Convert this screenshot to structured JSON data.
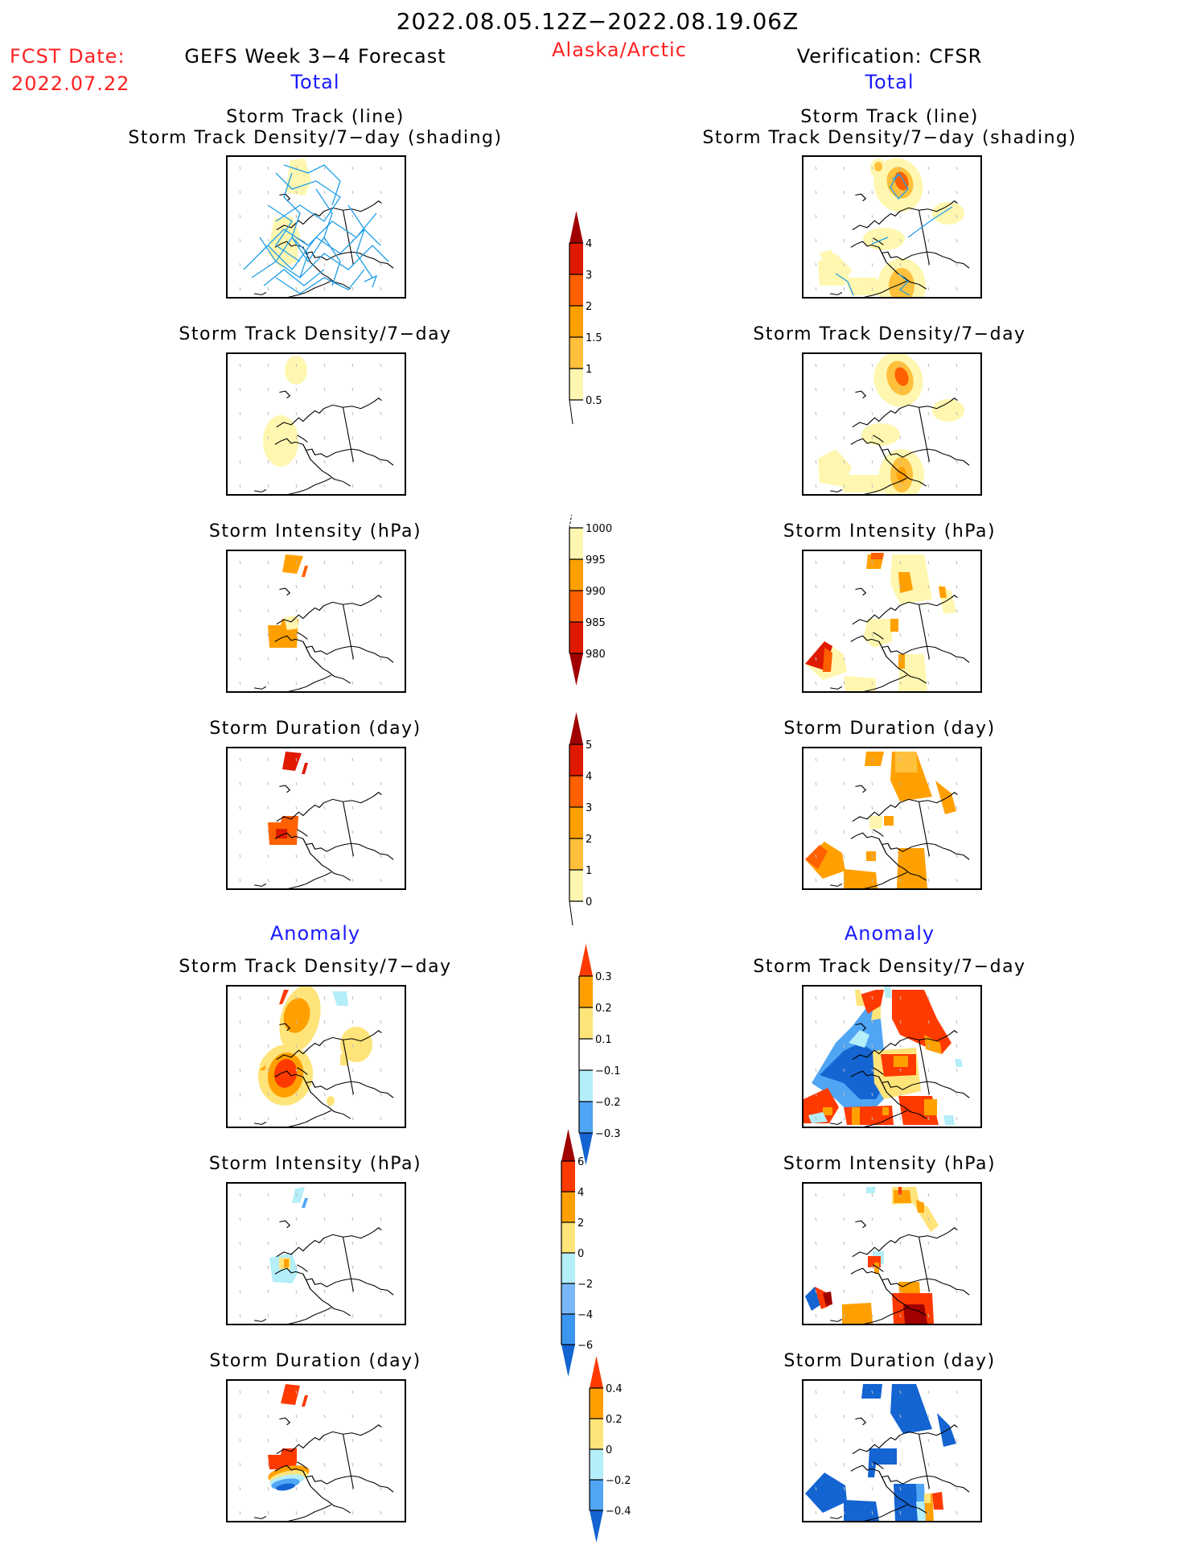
{
  "header": {
    "period": "2022.08.05.12Z−2022.08.19.06Z",
    "region": "Alaska/Arctic",
    "fcst_label": "FCST Date:",
    "fcst_date": "2022.07.22",
    "left_title": "GEFS Week 3−4 Forecast",
    "right_title": "Verification: CFSR",
    "left_subtitle": "Total",
    "right_subtitle": "Total"
  },
  "sections": {
    "total_label": "Total",
    "anomaly_label": "Anomaly"
  },
  "panels": {
    "left": [
      {
        "title_line1": "Storm Track (line)",
        "title_line2": "Storm Track Density/7−day (shading)"
      },
      {
        "title_line1": "Storm Track Density/7−day"
      },
      {
        "title_line1": "Storm Intensity (hPa)"
      },
      {
        "title_line1": "Storm Duration (day)"
      },
      {
        "title_line1": "Storm Track Density/7−day"
      },
      {
        "title_line1": "Storm Intensity (hPa)"
      },
      {
        "title_line1": "Storm Duration (day)"
      }
    ],
    "right": [
      {
        "title_line1": "Storm Track (line)",
        "title_line2": "Storm Track Density/7−day (shading)"
      },
      {
        "title_line1": "Storm Track Density/7−day"
      },
      {
        "title_line1": "Storm Intensity (hPa)"
      },
      {
        "title_line1": "Storm Duration (day)"
      },
      {
        "title_line1": "Storm Track Density/7−day"
      },
      {
        "title_line1": "Storm Intensity (hPa)"
      },
      {
        "title_line1": "Storm Duration (day)"
      }
    ]
  },
  "colors": {
    "title_red": "#ff2020",
    "subtitle_blue": "#1a1aff",
    "track_line": "#1e9ee8"
  },
  "chart_data": [
    {
      "type": "heatmap",
      "title": "Storm Track Density/7-day (Total)",
      "colorbar": {
        "ticks": [
          "0.5",
          "1",
          "1.5",
          "2",
          "3",
          "4"
        ],
        "colors": [
          "#fff7b0",
          "#ffc03c",
          "#ffa000",
          "#ff6000",
          "#e01a00",
          "#a00000"
        ],
        "extend": "max"
      }
    },
    {
      "type": "heatmap",
      "title": "Storm Intensity (hPa) (Total)",
      "colorbar": {
        "ticks": [
          "1000",
          "995",
          "990",
          "985",
          "980"
        ],
        "colors": [
          "#fff7b0",
          "#ffa000",
          "#ff6000",
          "#e01a00",
          "#a00000"
        ],
        "extend": "min"
      }
    },
    {
      "type": "heatmap",
      "title": "Storm Duration (day) (Total)",
      "colorbar": {
        "ticks": [
          "0",
          "1",
          "2",
          "3",
          "4",
          "5"
        ],
        "colors": [
          "#fff7b0",
          "#ffc03c",
          "#ffa000",
          "#ff6000",
          "#e01a00",
          "#a00000"
        ],
        "extend": "max"
      }
    },
    {
      "type": "heatmap",
      "title": "Storm Track Density/7-day (Anomaly)",
      "colorbar": {
        "ticks": [
          "0.3",
          "0.2",
          "0.1",
          "−0.1",
          "−0.2",
          "−0.3"
        ],
        "colors": [
          "#ff3a00",
          "#ffa000",
          "#ffe47a",
          "#ffffff",
          "#b4eef8",
          "#50a5f5",
          "#1464d2"
        ],
        "extend": "both"
      }
    },
    {
      "type": "heatmap",
      "title": "Storm Intensity (hPa) (Anomaly)",
      "colorbar": {
        "ticks": [
          "6",
          "4",
          "2",
          "0",
          "−2",
          "−4",
          "−6"
        ],
        "colors": [
          "#a00000",
          "#ff3a00",
          "#ffa000",
          "#ffe47a",
          "#b4eef8",
          "#78b8f8",
          "#3c96f0",
          "#1464d2"
        ],
        "extend": "both"
      }
    },
    {
      "type": "heatmap",
      "title": "Storm Duration (day) (Anomaly)",
      "colorbar": {
        "ticks": [
          "0.4",
          "0.2",
          "0",
          "−0.2",
          "−0.4"
        ],
        "colors": [
          "#ff3a00",
          "#ffa000",
          "#ffe47a",
          "#b4eef8",
          "#50a5f5",
          "#1464d2"
        ],
        "extend": "both"
      }
    }
  ]
}
